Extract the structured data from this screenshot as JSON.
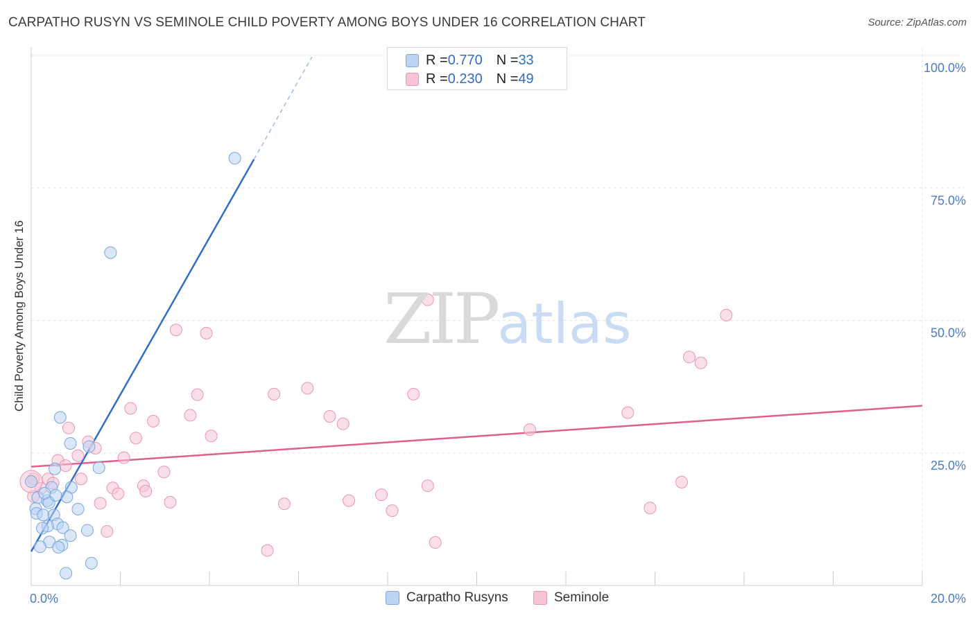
{
  "title": "CARPATHO RUSYN VS SEMINOLE CHILD POVERTY AMONG BOYS UNDER 16 CORRELATION CHART",
  "source": "Source: ZipAtlas.com",
  "watermark": {
    "zip": "ZIP",
    "atlas": "atlas"
  },
  "legend": {
    "r_label": "R = ",
    "n_label": "N = ",
    "rows": [
      {
        "name": "Carpatho Rusyns",
        "r": "0.770",
        "n": "33"
      },
      {
        "name": "Seminole",
        "r": "0.230",
        "n": "49"
      }
    ]
  },
  "colors": {
    "blue_fill": "#bcd4f2",
    "blue_stroke": "#7aa6df",
    "blue_line": "#2f6ec7",
    "pink_fill": "#f8c4d5",
    "pink_stroke": "#e896b2",
    "pink_line": "#e0608a",
    "grid": "#e3e3e3",
    "axis": "#cccccc",
    "tick_text": "#4a7cc4"
  },
  "chart_data": {
    "type": "scatter",
    "title": "CARPATHO RUSYN VS SEMINOLE CHILD POVERTY AMONG BOYS UNDER 16 CORRELATION CHART",
    "xlabel": "",
    "ylabel": "Child Poverty Among Boys Under 16",
    "xlim": [
      0,
      20
    ],
    "ylim": [
      0,
      100
    ],
    "x_ticks": [
      "0.0%",
      "20.0%"
    ],
    "y_ticks": [
      {
        "value": 25,
        "label": "25.0%"
      },
      {
        "value": 50,
        "label": "50.0%"
      },
      {
        "value": 75,
        "label": "75.0%"
      },
      {
        "value": 100,
        "label": "100.0%"
      }
    ],
    "grid": true,
    "legend_position": "top-center",
    "series": [
      {
        "name": "Carpatho Rusyns",
        "r": 0.77,
        "n": 33,
        "trend": {
          "x": [
            0.0,
            5.0
          ],
          "y": [
            6.4,
            80.4
          ],
          "dashed_to": [
            6.3,
            99.7
          ]
        },
        "points": [
          [
            4.57,
            80.6
          ],
          [
            1.78,
            62.8
          ],
          [
            0.65,
            31.7
          ],
          [
            0.88,
            26.8
          ],
          [
            1.3,
            26.2
          ],
          [
            1.52,
            22.2
          ],
          [
            0.53,
            22.0
          ],
          [
            0.0,
            19.6
          ],
          [
            0.46,
            18.5
          ],
          [
            0.9,
            18.5
          ],
          [
            0.15,
            16.6
          ],
          [
            0.36,
            16.0
          ],
          [
            0.8,
            16.7
          ],
          [
            0.4,
            15.6
          ],
          [
            0.1,
            14.5
          ],
          [
            1.05,
            14.4
          ],
          [
            0.12,
            13.6
          ],
          [
            0.27,
            13.3
          ],
          [
            0.51,
            13.3
          ],
          [
            0.59,
            11.6
          ],
          [
            0.37,
            11.2
          ],
          [
            0.71,
            10.9
          ],
          [
            0.25,
            10.8
          ],
          [
            1.26,
            10.4
          ],
          [
            0.88,
            9.4
          ],
          [
            0.41,
            8.2
          ],
          [
            0.69,
            7.6
          ],
          [
            0.2,
            7.3
          ],
          [
            0.61,
            7.2
          ],
          [
            1.35,
            4.2
          ],
          [
            0.78,
            2.3
          ],
          [
            0.3,
            17.4
          ],
          [
            0.55,
            17.0
          ]
        ]
      },
      {
        "name": "Seminole",
        "r": 0.23,
        "n": 49,
        "trend": {
          "x": [
            0.0,
            20.0
          ],
          "y": [
            22.4,
            33.9
          ]
        },
        "points": [
          [
            8.9,
            53.9
          ],
          [
            15.6,
            51.0
          ],
          [
            3.25,
            48.2
          ],
          [
            3.93,
            47.6
          ],
          [
            14.77,
            43.1
          ],
          [
            15.03,
            42.0
          ],
          [
            6.2,
            37.2
          ],
          [
            3.73,
            36.0
          ],
          [
            5.45,
            36.1
          ],
          [
            8.58,
            36.1
          ],
          [
            2.23,
            33.4
          ],
          [
            13.39,
            32.6
          ],
          [
            3.57,
            32.1
          ],
          [
            6.7,
            31.9
          ],
          [
            2.74,
            31.0
          ],
          [
            7.0,
            30.5
          ],
          [
            0.84,
            29.7
          ],
          [
            11.19,
            29.4
          ],
          [
            4.04,
            28.2
          ],
          [
            2.35,
            27.8
          ],
          [
            1.28,
            27.1
          ],
          [
            1.44,
            25.9
          ],
          [
            1.05,
            24.5
          ],
          [
            2.08,
            24.1
          ],
          [
            0.6,
            23.6
          ],
          [
            0.77,
            22.6
          ],
          [
            2.98,
            21.4
          ],
          [
            1.12,
            20.1
          ],
          [
            0.38,
            20.1
          ],
          [
            0.05,
            20.1
          ],
          [
            14.6,
            19.5
          ],
          [
            8.9,
            18.8
          ],
          [
            0.49,
            19.3
          ],
          [
            2.52,
            18.8
          ],
          [
            1.83,
            18.4
          ],
          [
            0.22,
            18.3
          ],
          [
            2.57,
            17.8
          ],
          [
            1.95,
            17.3
          ],
          [
            7.86,
            17.1
          ],
          [
            0.05,
            16.8
          ],
          [
            7.13,
            16.0
          ],
          [
            3.12,
            15.7
          ],
          [
            5.68,
            15.4
          ],
          [
            1.55,
            15.5
          ],
          [
            13.89,
            14.6
          ],
          [
            8.1,
            14.1
          ],
          [
            1.7,
            10.2
          ],
          [
            9.07,
            8.1
          ],
          [
            5.3,
            6.6
          ]
        ]
      }
    ]
  }
}
